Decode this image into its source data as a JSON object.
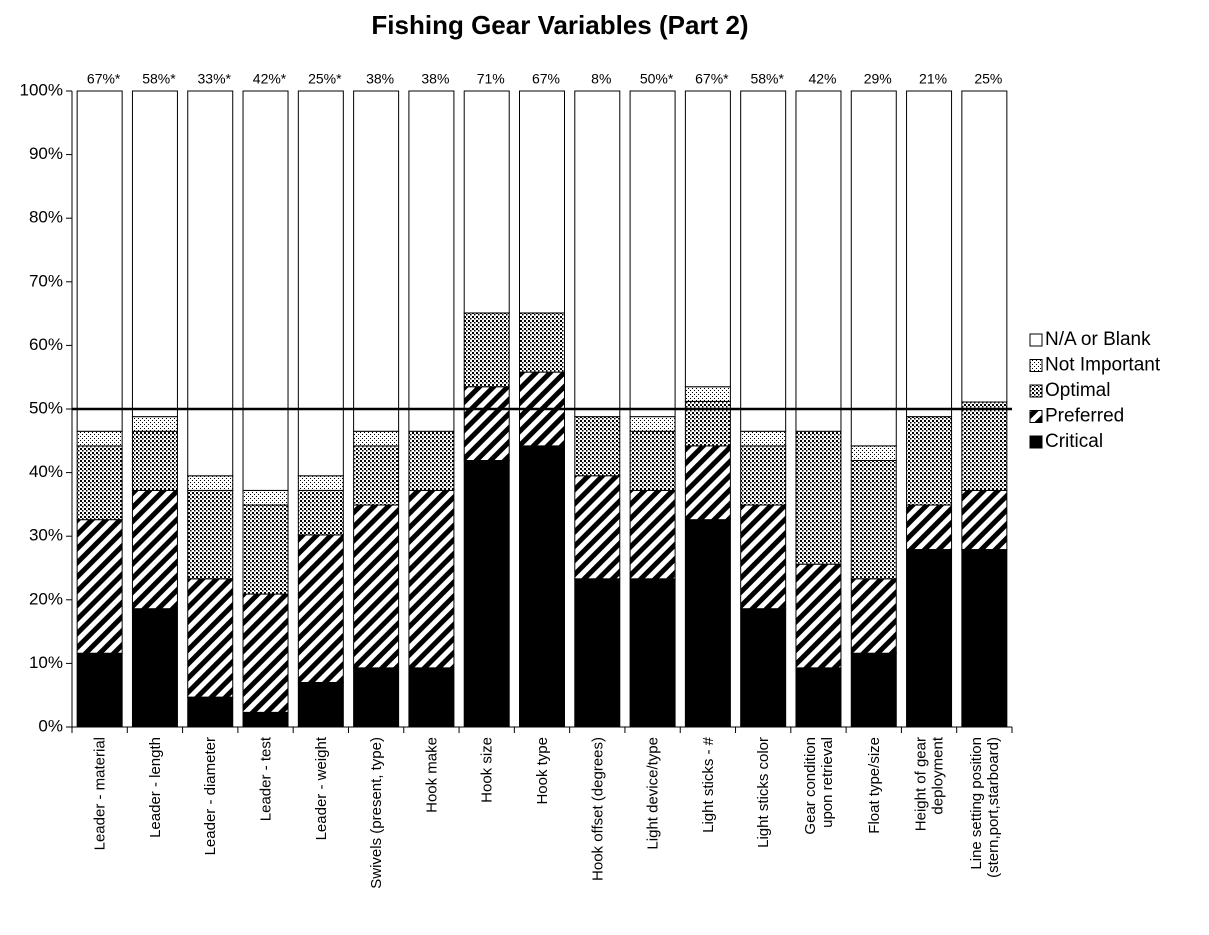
{
  "chart_data": {
    "type": "stacked_bar",
    "title": "Fishing Gear Variables (Part 2)",
    "categories": [
      "Leader - material",
      "Leader - length",
      "Leader - diameter",
      "Leader - test",
      "Leader - weight",
      "Swivels (present, type)",
      "Hook make",
      "Hook size",
      "Hook type",
      "Hook offset (degrees)",
      "Light device/type",
      "Light sticks - #",
      "Light sticks color",
      "Gear condition\nupon retrieval",
      "Float type/size",
      "Height of gear\ndeployment",
      "Line setting position\n(stern,port,starboard)"
    ],
    "series": [
      {
        "name": "Critical",
        "color": "#000000",
        "pattern": "solid",
        "values": [
          11.6,
          18.6,
          4.7,
          2.3,
          7.0,
          9.3,
          9.3,
          41.9,
          44.2,
          23.3,
          23.3,
          32.6,
          18.6,
          9.3,
          11.6,
          27.9,
          27.9
        ]
      },
      {
        "name": "Preferred",
        "color": "#000000",
        "pattern": "stripes",
        "values": [
          21.0,
          18.6,
          18.6,
          18.6,
          23.2,
          25.6,
          27.9,
          11.6,
          11.6,
          16.2,
          13.9,
          11.6,
          16.3,
          16.3,
          11.7,
          7.0,
          9.3
        ]
      },
      {
        "name": "Optimal",
        "color": "#000000",
        "pattern": "dense-dots",
        "values": [
          11.6,
          9.3,
          13.9,
          14.0,
          7.0,
          9.3,
          9.3,
          11.6,
          9.3,
          9.3,
          9.3,
          7.0,
          9.3,
          20.9,
          18.6,
          13.9,
          13.9
        ]
      },
      {
        "name": "Not Important",
        "color": "#000000",
        "pattern": "light-dots",
        "values": [
          2.3,
          2.3,
          2.3,
          2.3,
          2.3,
          2.3,
          0,
          0,
          0,
          0,
          2.3,
          2.3,
          2.3,
          0,
          2.3,
          0,
          0
        ]
      },
      {
        "name": "N/A or Blank",
        "color": "#ffffff",
        "pattern": "solid",
        "values": [
          53.5,
          51.2,
          60.5,
          62.8,
          60.5,
          53.5,
          53.5,
          34.9,
          34.9,
          51.2,
          51.2,
          46.5,
          53.5,
          53.5,
          55.8,
          51.2,
          48.9
        ]
      }
    ],
    "annotations": [
      "67%*",
      "58%*",
      "33%*",
      "42%*",
      "25%*",
      "38%",
      "38%",
      "71%",
      "67%",
      "8%",
      "50%*",
      "67%*",
      "58%*",
      "42%",
      "29%",
      "21%",
      "25%"
    ],
    "reference_line": 50,
    "ylim": [
      0,
      100
    ],
    "yticks": [
      {
        "value": 0,
        "label": "0%"
      },
      {
        "value": 10,
        "label": "10%"
      },
      {
        "value": 20,
        "label": "20%"
      },
      {
        "value": 30,
        "label": "30%"
      },
      {
        "value": 40,
        "label": "40%"
      },
      {
        "value": 50,
        "label": "50%"
      },
      {
        "value": 60,
        "label": "60%"
      },
      {
        "value": 70,
        "label": "70%"
      },
      {
        "value": 80,
        "label": "80%"
      },
      {
        "value": 90,
        "label": "90%"
      },
      {
        "value": 100,
        "label": "100%"
      }
    ],
    "legend": "right"
  }
}
